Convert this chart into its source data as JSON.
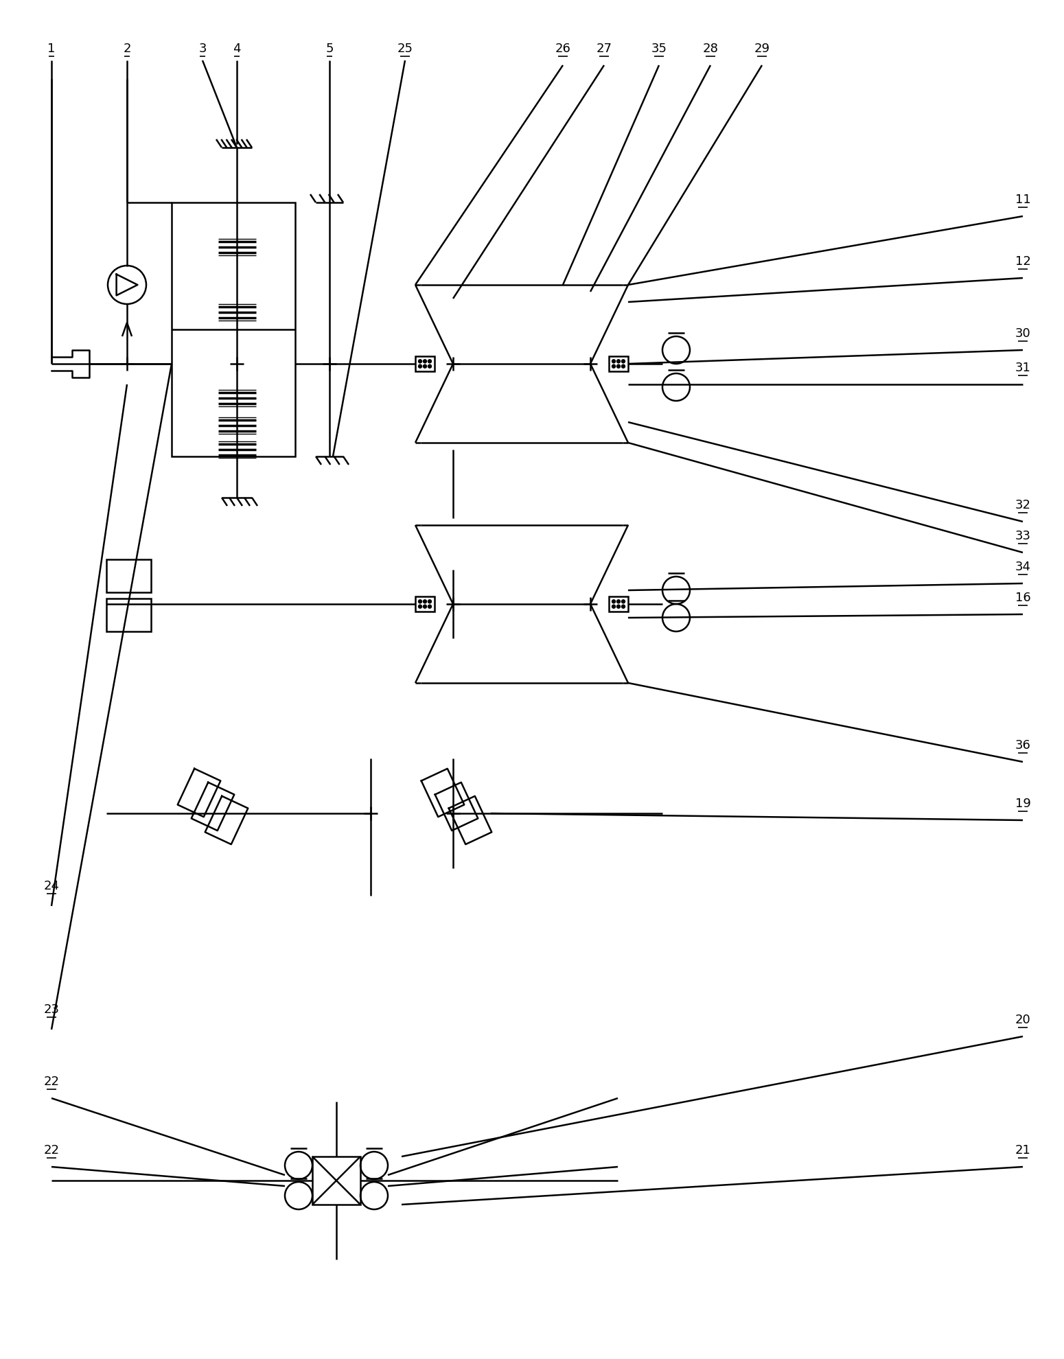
{
  "fig_width": 15.5,
  "fig_height": 19.8,
  "dpi": 100,
  "bg_color": "#ffffff",
  "lc": "#000000",
  "lw": 1.8
}
